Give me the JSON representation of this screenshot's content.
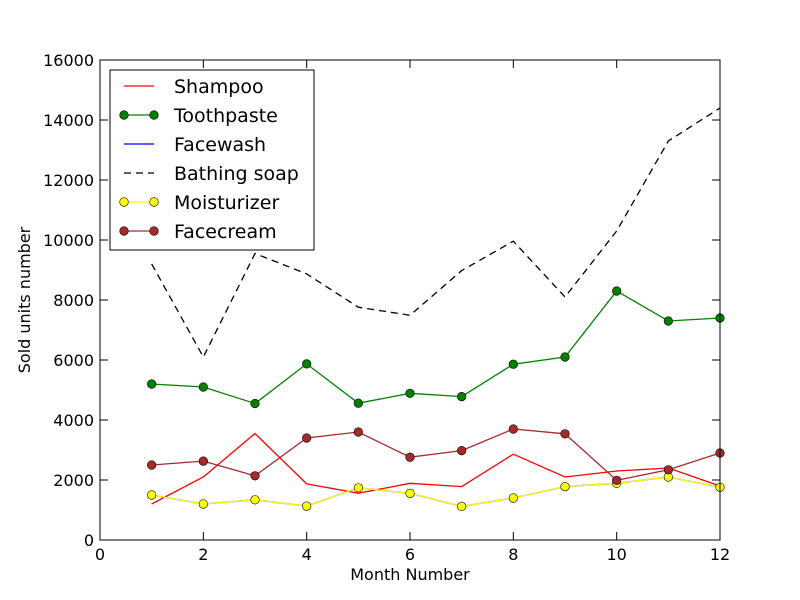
{
  "chart_data": {
    "type": "line",
    "title": "",
    "xlabel": "Month Number",
    "ylabel": "Sold units number",
    "xlim": [
      0,
      12
    ],
    "ylim": [
      0,
      16000
    ],
    "xticks": [
      "0",
      "2",
      "4",
      "6",
      "8",
      "10",
      "12"
    ],
    "yticks": [
      "0",
      "2000",
      "4000",
      "6000",
      "8000",
      "10000",
      "12000",
      "14000",
      "16000"
    ],
    "grid": false,
    "legend_position": "top-left",
    "x": [
      1,
      2,
      3,
      4,
      5,
      6,
      7,
      8,
      9,
      10,
      11,
      12
    ],
    "series": [
      {
        "name": "Shampoo",
        "color": "#ff0000",
        "line": "solid",
        "marker": "none",
        "values": [
          1200,
          2100,
          3550,
          1870,
          1560,
          1890,
          1780,
          2860,
          2100,
          2300,
          2400,
          1800
        ]
      },
      {
        "name": "Toothpaste",
        "color": "#008000",
        "line": "solid",
        "marker": "circle",
        "values": [
          5200,
          5100,
          4550,
          5870,
          4560,
          4890,
          4780,
          5860,
          6100,
          8300,
          7300,
          7400
        ]
      },
      {
        "name": "Facewash",
        "color": "#0000ff",
        "line": "solid",
        "marker": "none",
        "values": [
          1500,
          1200,
          1340,
          1130,
          1740,
          1555,
          1120,
          1400,
          1780,
          1890,
          2100,
          1760
        ]
      },
      {
        "name": "Bathing soap",
        "color": "#000000",
        "line": "dashed",
        "marker": "none",
        "values": [
          9200,
          6100,
          9550,
          8870,
          7760,
          7490,
          8980,
          9960,
          8100,
          10300,
          13300,
          14400
        ]
      },
      {
        "name": "Moisturizer",
        "color": "#ffff00",
        "line": "solid",
        "marker": "circle",
        "values": [
          1500,
          1200,
          1340,
          1130,
          1740,
          1555,
          1120,
          1400,
          1780,
          1890,
          2100,
          1760
        ]
      },
      {
        "name": "Facecream",
        "color": "#a52a2a",
        "line": "solid",
        "marker": "circle",
        "values": [
          2500,
          2630,
          2140,
          3400,
          3600,
          2760,
          2980,
          3700,
          3540,
          1990,
          2340,
          2900
        ]
      }
    ]
  }
}
